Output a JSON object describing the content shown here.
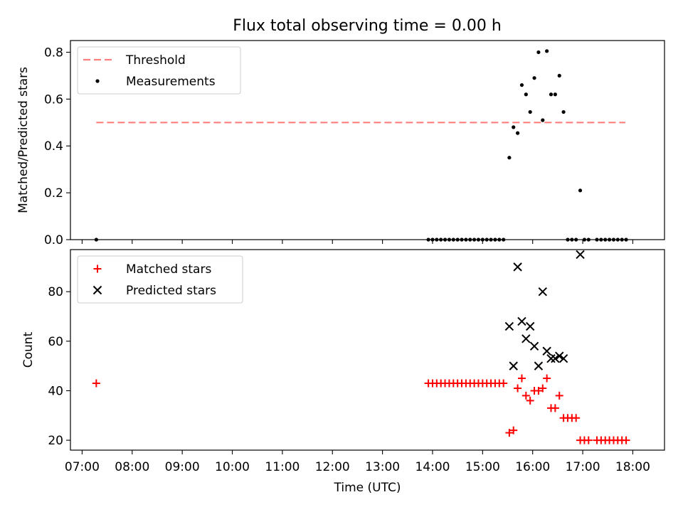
{
  "figure": {
    "title": "Flux total observing time = 0.00 h"
  },
  "chart_data": [
    {
      "type": "scatter",
      "title": "Flux total observing time = 0.00 h",
      "xlabel": "",
      "ylabel": "Matched/Predicted stars",
      "xlim": [
        "06:46",
        "18:38"
      ],
      "ylim": [
        0,
        0.85
      ],
      "yticks": [
        0.0,
        0.2,
        0.4,
        0.6,
        0.8
      ],
      "ytick_labels": [
        "0.0",
        "0.2",
        "0.4",
        "0.6",
        "0.8"
      ],
      "legend_position": "top-left",
      "grid": false,
      "series": [
        {
          "name": "Threshold",
          "kind": "line",
          "style": "dashed",
          "color": "#ff7f7f",
          "points": [
            {
              "x": "07:17",
              "y": 0.5
            },
            {
              "x": "17:51",
              "y": 0.5
            }
          ]
        },
        {
          "name": "Measurements",
          "kind": "scatter",
          "marker": "dot",
          "color": "#000000",
          "points": [
            {
              "x": "07:17",
              "y": 0.0
            },
            {
              "x": "13:55",
              "y": 0.0
            },
            {
              "x": "14:00",
              "y": 0.0
            },
            {
              "x": "14:05",
              "y": 0.0
            },
            {
              "x": "14:10",
              "y": 0.0
            },
            {
              "x": "14:15",
              "y": 0.0
            },
            {
              "x": "14:20",
              "y": 0.0
            },
            {
              "x": "14:25",
              "y": 0.0
            },
            {
              "x": "14:30",
              "y": 0.0
            },
            {
              "x": "14:35",
              "y": 0.0
            },
            {
              "x": "14:40",
              "y": 0.0
            },
            {
              "x": "14:45",
              "y": 0.0
            },
            {
              "x": "14:50",
              "y": 0.0
            },
            {
              "x": "14:55",
              "y": 0.0
            },
            {
              "x": "15:00",
              "y": 0.0
            },
            {
              "x": "15:05",
              "y": 0.0
            },
            {
              "x": "15:10",
              "y": 0.0
            },
            {
              "x": "15:15",
              "y": 0.0
            },
            {
              "x": "15:20",
              "y": 0.0
            },
            {
              "x": "15:25",
              "y": 0.0
            },
            {
              "x": "15:32",
              "y": 0.35
            },
            {
              "x": "15:37",
              "y": 0.48
            },
            {
              "x": "15:42",
              "y": 0.455
            },
            {
              "x": "15:47",
              "y": 0.66
            },
            {
              "x": "15:52",
              "y": 0.62
            },
            {
              "x": "15:57",
              "y": 0.545
            },
            {
              "x": "16:02",
              "y": 0.69
            },
            {
              "x": "16:07",
              "y": 0.8
            },
            {
              "x": "16:12",
              "y": 0.51
            },
            {
              "x": "16:17",
              "y": 0.805
            },
            {
              "x": "16:22",
              "y": 0.62
            },
            {
              "x": "16:27",
              "y": 0.62
            },
            {
              "x": "16:32",
              "y": 0.7
            },
            {
              "x": "16:37",
              "y": 0.545
            },
            {
              "x": "16:42",
              "y": 0.0
            },
            {
              "x": "16:47",
              "y": 0.0
            },
            {
              "x": "16:52",
              "y": 0.0
            },
            {
              "x": "16:57",
              "y": 0.21
            },
            {
              "x": "17:02",
              "y": 0.0
            },
            {
              "x": "17:07",
              "y": 0.0
            },
            {
              "x": "17:17",
              "y": 0.0
            },
            {
              "x": "17:22",
              "y": 0.0
            },
            {
              "x": "17:27",
              "y": 0.0
            },
            {
              "x": "17:32",
              "y": 0.0
            },
            {
              "x": "17:37",
              "y": 0.0
            },
            {
              "x": "17:42",
              "y": 0.0
            },
            {
              "x": "17:47",
              "y": 0.0
            },
            {
              "x": "17:52",
              "y": 0.0
            }
          ]
        }
      ]
    },
    {
      "type": "scatter",
      "title": "",
      "xlabel": "Time (UTC)",
      "ylabel": "Count",
      "xlim": [
        "06:46",
        "18:38"
      ],
      "ylim": [
        16,
        97
      ],
      "xticks": [
        "07:00",
        "08:00",
        "09:00",
        "10:00",
        "11:00",
        "12:00",
        "13:00",
        "14:00",
        "15:00",
        "16:00",
        "17:00",
        "18:00"
      ],
      "yticks": [
        20,
        40,
        60,
        80
      ],
      "ytick_labels": [
        "20",
        "40",
        "60",
        "80"
      ],
      "legend_position": "top-left",
      "grid": false,
      "series": [
        {
          "name": "Matched stars",
          "kind": "scatter",
          "marker": "plus",
          "color": "#ff0000",
          "points": [
            {
              "x": "07:17",
              "y": 43
            },
            {
              "x": "13:55",
              "y": 43
            },
            {
              "x": "14:00",
              "y": 43
            },
            {
              "x": "14:05",
              "y": 43
            },
            {
              "x": "14:10",
              "y": 43
            },
            {
              "x": "14:15",
              "y": 43
            },
            {
              "x": "14:20",
              "y": 43
            },
            {
              "x": "14:25",
              "y": 43
            },
            {
              "x": "14:30",
              "y": 43
            },
            {
              "x": "14:35",
              "y": 43
            },
            {
              "x": "14:40",
              "y": 43
            },
            {
              "x": "14:45",
              "y": 43
            },
            {
              "x": "14:50",
              "y": 43
            },
            {
              "x": "14:55",
              "y": 43
            },
            {
              "x": "15:00",
              "y": 43
            },
            {
              "x": "15:05",
              "y": 43
            },
            {
              "x": "15:10",
              "y": 43
            },
            {
              "x": "15:15",
              "y": 43
            },
            {
              "x": "15:20",
              "y": 43
            },
            {
              "x": "15:25",
              "y": 43
            },
            {
              "x": "15:32",
              "y": 23
            },
            {
              "x": "15:37",
              "y": 24
            },
            {
              "x": "15:42",
              "y": 41
            },
            {
              "x": "15:47",
              "y": 45
            },
            {
              "x": "15:52",
              "y": 38
            },
            {
              "x": "15:57",
              "y": 36
            },
            {
              "x": "16:02",
              "y": 40
            },
            {
              "x": "16:07",
              "y": 40
            },
            {
              "x": "16:12",
              "y": 41
            },
            {
              "x": "16:17",
              "y": 45
            },
            {
              "x": "16:22",
              "y": 33
            },
            {
              "x": "16:27",
              "y": 33
            },
            {
              "x": "16:32",
              "y": 38
            },
            {
              "x": "16:37",
              "y": 29
            },
            {
              "x": "16:42",
              "y": 29
            },
            {
              "x": "16:47",
              "y": 29
            },
            {
              "x": "16:52",
              "y": 29
            },
            {
              "x": "16:57",
              "y": 20
            },
            {
              "x": "17:02",
              "y": 20
            },
            {
              "x": "17:07",
              "y": 20
            },
            {
              "x": "17:17",
              "y": 20
            },
            {
              "x": "17:22",
              "y": 20
            },
            {
              "x": "17:27",
              "y": 20
            },
            {
              "x": "17:32",
              "y": 20
            },
            {
              "x": "17:37",
              "y": 20
            },
            {
              "x": "17:42",
              "y": 20
            },
            {
              "x": "17:47",
              "y": 20
            },
            {
              "x": "17:52",
              "y": 20
            }
          ]
        },
        {
          "name": "Predicted stars",
          "kind": "scatter",
          "marker": "x",
          "color": "#000000",
          "points": [
            {
              "x": "15:32",
              "y": 66
            },
            {
              "x": "15:37",
              "y": 50
            },
            {
              "x": "15:42",
              "y": 90
            },
            {
              "x": "15:47",
              "y": 68
            },
            {
              "x": "15:52",
              "y": 61
            },
            {
              "x": "15:57",
              "y": 66
            },
            {
              "x": "16:02",
              "y": 58
            },
            {
              "x": "16:07",
              "y": 50
            },
            {
              "x": "16:12",
              "y": 80
            },
            {
              "x": "16:17",
              "y": 56
            },
            {
              "x": "16:22",
              "y": 53
            },
            {
              "x": "16:27",
              "y": 53
            },
            {
              "x": "16:32",
              "y": 54
            },
            {
              "x": "16:37",
              "y": 53
            },
            {
              "x": "16:57",
              "y": 95
            }
          ]
        }
      ]
    }
  ]
}
